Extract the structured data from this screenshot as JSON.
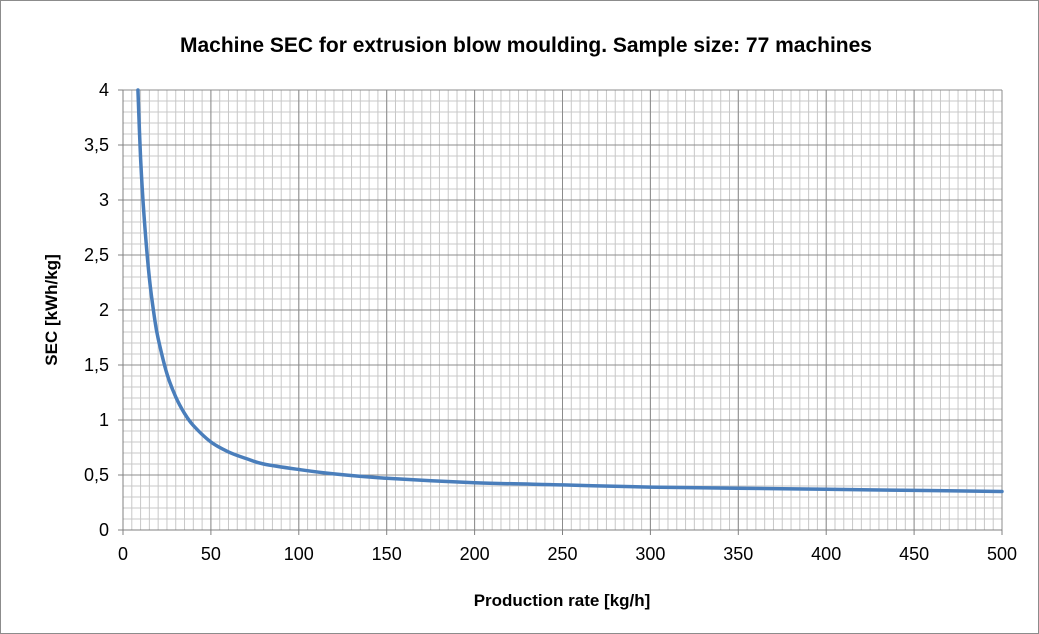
{
  "chart_data": {
    "type": "line",
    "title": "Machine SEC for extrusion blow moulding.  Sample size: 77 machines",
    "xlabel": "Production rate [kg/h]",
    "ylabel": "SEC [kWh/kg]",
    "xlim": [
      0,
      500
    ],
    "ylim": [
      0,
      4
    ],
    "x_ticks": [
      "0",
      "50",
      "100",
      "150",
      "200",
      "250",
      "300",
      "350",
      "400",
      "450",
      "500"
    ],
    "y_ticks": [
      "0",
      "0,5",
      "1",
      "1,5",
      "2",
      "2,5",
      "3",
      "3,5",
      "4"
    ],
    "grid": true,
    "legend": "none",
    "series_color": "#4a7ebb",
    "series": [
      {
        "x": [
          8.5,
          10,
          12,
          15,
          18,
          20,
          25,
          30,
          35,
          40,
          50,
          60,
          70,
          80,
          100,
          120,
          150,
          200,
          250,
          300,
          350,
          400,
          450,
          500
        ],
        "y": [
          4.0,
          3.38,
          2.85,
          2.29,
          1.92,
          1.74,
          1.42,
          1.21,
          1.06,
          0.95,
          0.8,
          0.71,
          0.65,
          0.6,
          0.55,
          0.51,
          0.47,
          0.43,
          0.41,
          0.39,
          0.38,
          0.37,
          0.36,
          0.35
        ]
      }
    ]
  }
}
